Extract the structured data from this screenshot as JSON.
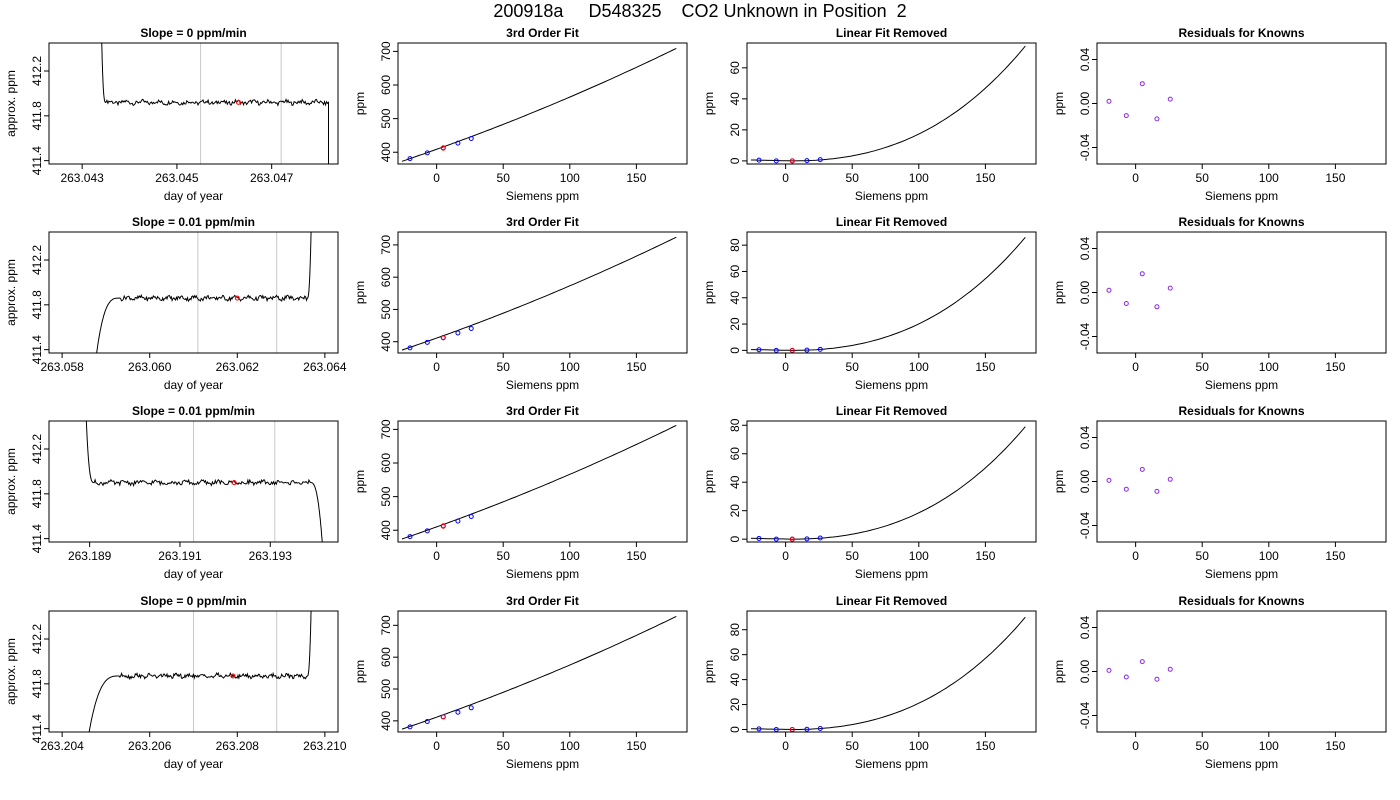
{
  "main_title": "200918a     D548325    CO2 Unknown in Position  2",
  "chart_data": [
    {
      "type": "line",
      "panel": "time-series",
      "row": 0,
      "title": "Slope =  0  ppm/min",
      "xlabel": "day of year",
      "ylabel": "approx. ppm",
      "xlim": [
        263.0423,
        263.0484
      ],
      "ylim": [
        411.37,
        412.45
      ],
      "x_ticks": [
        "263.043",
        "263.045",
        "263.047"
      ],
      "x_tick_values": [
        263.043,
        263.045,
        263.047
      ],
      "y_ticks": [
        "411.4",
        "411.8",
        "412.2"
      ],
      "y_tick_values": [
        411.4,
        411.8,
        412.2
      ],
      "vlines": [
        263.0455,
        263.0472
      ],
      "marker": {
        "x": 263.0463,
        "y": 411.92
      },
      "plateau": 411.92,
      "lead": "high",
      "tail": "low",
      "curve_range": [
        263.0435,
        263.0482
      ],
      "curve_ends": [
        263.0434,
        263.0482
      ]
    },
    {
      "type": "line",
      "panel": "calibration",
      "row": 0,
      "title": "3rd Order Fit",
      "xlabel": "Siemens ppm",
      "ylabel": "ppm",
      "xlim": [
        -29,
        188
      ],
      "ylim": [
        365,
        725
      ],
      "x_ticks": [
        "0",
        "50",
        "100",
        "150"
      ],
      "x_tick_values": [
        0,
        50,
        100,
        150
      ],
      "y_ticks": [
        "400",
        "500",
        "600",
        "700"
      ],
      "y_tick_values": [
        400,
        500,
        600,
        700
      ],
      "curve": {
        "x0": -26,
        "x1": 180,
        "y0": 373,
        "y1": 709
      },
      "knowns": [
        {
          "x": -20,
          "y": 381
        },
        {
          "x": -7,
          "y": 398
        },
        {
          "x": 5,
          "y": 413
        },
        {
          "x": 16,
          "y": 427
        },
        {
          "x": 26,
          "y": 441
        }
      ],
      "unknown": {
        "x": 5,
        "y": 412
      }
    },
    {
      "type": "line",
      "panel": "linear-removed",
      "row": 0,
      "title": "Linear Fit Removed",
      "xlabel": "Siemens ppm",
      "ylabel": "ppm",
      "xlim": [
        -29,
        188
      ],
      "ylim": [
        -2,
        76
      ],
      "x_ticks": [
        "0",
        "50",
        "100",
        "150"
      ],
      "x_tick_values": [
        0,
        50,
        100,
        150
      ],
      "y_ticks": [
        "0",
        "20",
        "40",
        "60"
      ],
      "y_tick_values": [
        0,
        20,
        40,
        60
      ],
      "curve": {
        "x0": -26,
        "x1": 180,
        "ymax": 74
      },
      "knowns": [
        {
          "x": -20,
          "y": 0.5
        },
        {
          "x": -7,
          "y": 0
        },
        {
          "x": 5,
          "y": 0
        },
        {
          "x": 16,
          "y": 0.2
        },
        {
          "x": 26,
          "y": 0.8
        }
      ],
      "unknown": {
        "x": 5,
        "y": 0
      }
    },
    {
      "type": "scatter",
      "panel": "residuals",
      "row": 0,
      "title": "Residuals for Knowns",
      "xlabel": "Siemens ppm",
      "ylabel": "ppm",
      "xlim": [
        -29,
        188
      ],
      "ylim": [
        -0.055,
        0.055
      ],
      "x_ticks": [
        "0",
        "50",
        "100",
        "150"
      ],
      "x_tick_values": [
        0,
        50,
        100,
        150
      ],
      "y_ticks": [
        "-0.04",
        "0.00",
        "0.04"
      ],
      "y_tick_values": [
        -0.04,
        0,
        0.04
      ],
      "points": [
        {
          "x": -20,
          "y": 0.002
        },
        {
          "x": -7,
          "y": -0.011
        },
        {
          "x": 5,
          "y": 0.018
        },
        {
          "x": 16,
          "y": -0.014
        },
        {
          "x": 26,
          "y": 0.004
        }
      ]
    },
    {
      "type": "line",
      "panel": "time-series",
      "row": 1,
      "title": "Slope =  0.01  ppm/min",
      "xlabel": "day of year",
      "ylabel": "approx. ppm",
      "xlim": [
        263.0577,
        263.0643
      ],
      "ylim": [
        411.37,
        412.45
      ],
      "x_ticks": [
        "263.058",
        "263.060",
        "263.062",
        "263.064"
      ],
      "x_tick_values": [
        263.058,
        263.06,
        263.062,
        263.064
      ],
      "y_ticks": [
        "411.4",
        "411.8",
        "412.2"
      ],
      "y_tick_values": [
        411.4,
        411.8,
        412.2
      ],
      "vlines": [
        263.0611,
        263.0629
      ],
      "marker": {
        "x": 263.062,
        "y": 411.86
      },
      "plateau": 411.86,
      "lead": "low",
      "tail": "high",
      "curve_range": [
        263.0593,
        263.0636
      ],
      "curve_ends": [
        263.0587,
        263.0637
      ]
    },
    {
      "type": "line",
      "panel": "calibration",
      "row": 1,
      "title": "3rd Order Fit",
      "xlabel": "Siemens ppm",
      "ylabel": "ppm",
      "xlim": [
        -29,
        188
      ],
      "ylim": [
        365,
        740
      ],
      "x_ticks": [
        "0",
        "50",
        "100",
        "150"
      ],
      "x_tick_values": [
        0,
        50,
        100,
        150
      ],
      "y_ticks": [
        "400",
        "500",
        "600",
        "700"
      ],
      "y_tick_values": [
        400,
        500,
        600,
        700
      ],
      "curve": {
        "x0": -26,
        "x1": 180,
        "y0": 374,
        "y1": 724
      },
      "knowns": [
        {
          "x": -20,
          "y": 381
        },
        {
          "x": -7,
          "y": 398
        },
        {
          "x": 5,
          "y": 413
        },
        {
          "x": 16,
          "y": 427
        },
        {
          "x": 26,
          "y": 441
        }
      ],
      "unknown": {
        "x": 5,
        "y": 412
      }
    },
    {
      "type": "line",
      "panel": "linear-removed",
      "row": 1,
      "title": "Linear Fit Removed",
      "xlabel": "Siemens ppm",
      "ylabel": "ppm",
      "xlim": [
        -29,
        188
      ],
      "ylim": [
        -2,
        90
      ],
      "x_ticks": [
        "0",
        "50",
        "100",
        "150"
      ],
      "x_tick_values": [
        0,
        50,
        100,
        150
      ],
      "y_ticks": [
        "0",
        "20",
        "40",
        "60",
        "80"
      ],
      "y_tick_values": [
        0,
        20,
        40,
        60,
        80
      ],
      "curve": {
        "x0": -26,
        "x1": 180,
        "ymax": 86
      },
      "knowns": [
        {
          "x": -20,
          "y": 0.5
        },
        {
          "x": -7,
          "y": 0
        },
        {
          "x": 5,
          "y": 0
        },
        {
          "x": 16,
          "y": 0.2
        },
        {
          "x": 26,
          "y": 0.8
        }
      ],
      "unknown": {
        "x": 5,
        "y": 0
      }
    },
    {
      "type": "scatter",
      "panel": "residuals",
      "row": 1,
      "title": "Residuals for Knowns",
      "xlabel": "Siemens ppm",
      "ylabel": "ppm",
      "xlim": [
        -29,
        188
      ],
      "ylim": [
        -0.055,
        0.055
      ],
      "x_ticks": [
        "0",
        "50",
        "100",
        "150"
      ],
      "x_tick_values": [
        0,
        50,
        100,
        150
      ],
      "y_ticks": [
        "-0.04",
        "0.00",
        "0.04"
      ],
      "y_tick_values": [
        -0.04,
        0,
        0.04
      ],
      "points": [
        {
          "x": -20,
          "y": 0.002
        },
        {
          "x": -7,
          "y": -0.01
        },
        {
          "x": 5,
          "y": 0.017
        },
        {
          "x": 16,
          "y": -0.013
        },
        {
          "x": 26,
          "y": 0.004
        }
      ]
    },
    {
      "type": "line",
      "panel": "time-series",
      "row": 2,
      "title": "Slope =  0.01  ppm/min",
      "xlabel": "day of year",
      "ylabel": "approx. ppm",
      "xlim": [
        263.1881,
        263.1945
      ],
      "ylim": [
        411.37,
        412.45
      ],
      "x_ticks": [
        "263.189",
        "263.191",
        "263.193"
      ],
      "x_tick_values": [
        263.189,
        263.191,
        263.193
      ],
      "y_ticks": [
        "411.4",
        "411.8",
        "412.2"
      ],
      "y_tick_values": [
        411.4,
        411.8,
        412.2
      ],
      "vlines": [
        263.1913,
        263.1931
      ],
      "marker": {
        "x": 263.1922,
        "y": 411.9
      },
      "plateau": 411.9,
      "lead": "high",
      "tail": "low",
      "curve_range": [
        263.1891,
        263.1939
      ],
      "curve_ends": [
        263.1889,
        263.1942
      ]
    },
    {
      "type": "line",
      "panel": "calibration",
      "row": 2,
      "title": "3rd Order Fit",
      "xlabel": "Siemens ppm",
      "ylabel": "ppm",
      "xlim": [
        -29,
        188
      ],
      "ylim": [
        365,
        725
      ],
      "x_ticks": [
        "0",
        "50",
        "100",
        "150"
      ],
      "x_tick_values": [
        0,
        50,
        100,
        150
      ],
      "y_ticks": [
        "400",
        "500",
        "600",
        "700"
      ],
      "y_tick_values": [
        400,
        500,
        600,
        700
      ],
      "curve": {
        "x0": -26,
        "x1": 180,
        "y0": 374,
        "y1": 712
      },
      "knowns": [
        {
          "x": -20,
          "y": 381
        },
        {
          "x": -7,
          "y": 398
        },
        {
          "x": 5,
          "y": 413
        },
        {
          "x": 16,
          "y": 427
        },
        {
          "x": 26,
          "y": 441
        }
      ],
      "unknown": {
        "x": 5,
        "y": 412
      }
    },
    {
      "type": "line",
      "panel": "linear-removed",
      "row": 2,
      "title": "Linear Fit Removed",
      "xlabel": "Siemens ppm",
      "ylabel": "ppm",
      "xlim": [
        -29,
        188
      ],
      "ylim": [
        -2,
        83
      ],
      "x_ticks": [
        "0",
        "50",
        "100",
        "150"
      ],
      "x_tick_values": [
        0,
        50,
        100,
        150
      ],
      "y_ticks": [
        "0",
        "20",
        "40",
        "60",
        "80"
      ],
      "y_tick_values": [
        0,
        20,
        40,
        60,
        80
      ],
      "curve": {
        "x0": -26,
        "x1": 180,
        "ymax": 79
      },
      "knowns": [
        {
          "x": -20,
          "y": 0.5
        },
        {
          "x": -7,
          "y": 0
        },
        {
          "x": 5,
          "y": 0
        },
        {
          "x": 16,
          "y": 0.2
        },
        {
          "x": 26,
          "y": 0.8
        }
      ],
      "unknown": {
        "x": 5,
        "y": 0
      }
    },
    {
      "type": "scatter",
      "panel": "residuals",
      "row": 2,
      "title": "Residuals for Knowns",
      "xlabel": "Siemens ppm",
      "ylabel": "ppm",
      "xlim": [
        -29,
        188
      ],
      "ylim": [
        -0.055,
        0.055
      ],
      "x_ticks": [
        "0",
        "50",
        "100",
        "150"
      ],
      "x_tick_values": [
        0,
        50,
        100,
        150
      ],
      "y_ticks": [
        "-0.04",
        "0.00",
        "0.04"
      ],
      "y_tick_values": [
        -0.04,
        0,
        0.04
      ],
      "points": [
        {
          "x": -20,
          "y": 0.001
        },
        {
          "x": -7,
          "y": -0.007
        },
        {
          "x": 5,
          "y": 0.011
        },
        {
          "x": 16,
          "y": -0.009
        },
        {
          "x": 26,
          "y": 0.002
        }
      ]
    },
    {
      "type": "line",
      "panel": "time-series",
      "row": 3,
      "title": "Slope =  0  ppm/min",
      "xlabel": "day of year",
      "ylabel": "approx. ppm",
      "xlim": [
        263.2037,
        263.2103
      ],
      "ylim": [
        411.37,
        412.45
      ],
      "x_ticks": [
        "263.204",
        "263.206",
        "263.208",
        "263.210"
      ],
      "x_tick_values": [
        263.204,
        263.206,
        263.208,
        263.21
      ],
      "y_ticks": [
        "411.4",
        "411.8",
        "412.2"
      ],
      "y_tick_values": [
        411.4,
        411.8,
        412.2
      ],
      "vlines": [
        263.207,
        263.2089
      ],
      "marker": {
        "x": 263.2079,
        "y": 411.87
      },
      "plateau": 411.87,
      "lead": "low",
      "tail": "high",
      "curve_range": [
        263.2053,
        263.2096
      ],
      "curve_ends": [
        263.2045,
        263.2097
      ]
    },
    {
      "type": "line",
      "panel": "calibration",
      "row": 3,
      "title": "3rd Order Fit",
      "xlabel": "Siemens ppm",
      "ylabel": "ppm",
      "xlim": [
        -29,
        188
      ],
      "ylim": [
        365,
        745
      ],
      "x_ticks": [
        "0",
        "50",
        "100",
        "150"
      ],
      "x_tick_values": [
        0,
        50,
        100,
        150
      ],
      "y_ticks": [
        "400",
        "500",
        "600",
        "700"
      ],
      "y_tick_values": [
        400,
        500,
        600,
        700
      ],
      "curve": {
        "x0": -26,
        "x1": 180,
        "y0": 374,
        "y1": 728
      },
      "knowns": [
        {
          "x": -20,
          "y": 381
        },
        {
          "x": -7,
          "y": 398
        },
        {
          "x": 5,
          "y": 413
        },
        {
          "x": 16,
          "y": 427
        },
        {
          "x": 26,
          "y": 441
        }
      ],
      "unknown": {
        "x": 5,
        "y": 412
      }
    },
    {
      "type": "line",
      "panel": "linear-removed",
      "row": 3,
      "title": "Linear Fit Removed",
      "xlabel": "Siemens ppm",
      "ylabel": "ppm",
      "xlim": [
        -29,
        188
      ],
      "ylim": [
        -2,
        95
      ],
      "x_ticks": [
        "0",
        "50",
        "100",
        "150"
      ],
      "x_tick_values": [
        0,
        50,
        100,
        150
      ],
      "y_ticks": [
        "0",
        "20",
        "40",
        "60",
        "80"
      ],
      "y_tick_values": [
        0,
        20,
        40,
        60,
        80
      ],
      "curve": {
        "x0": -26,
        "x1": 180,
        "ymax": 90
      },
      "knowns": [
        {
          "x": -20,
          "y": 0.5
        },
        {
          "x": -7,
          "y": 0
        },
        {
          "x": 5,
          "y": 0
        },
        {
          "x": 16,
          "y": 0.2
        },
        {
          "x": 26,
          "y": 0.8
        }
      ],
      "unknown": {
        "x": 5,
        "y": 0
      }
    },
    {
      "type": "scatter",
      "panel": "residuals",
      "row": 3,
      "title": "Residuals for Knowns",
      "xlabel": "Siemens ppm",
      "ylabel": "ppm",
      "xlim": [
        -29,
        188
      ],
      "ylim": [
        -0.055,
        0.055
      ],
      "x_ticks": [
        "0",
        "50",
        "100",
        "150"
      ],
      "x_tick_values": [
        0,
        50,
        100,
        150
      ],
      "y_ticks": [
        "-0.04",
        "0.00",
        "0.04"
      ],
      "y_tick_values": [
        -0.04,
        0,
        0.04
      ],
      "points": [
        {
          "x": -20,
          "y": 0.001
        },
        {
          "x": -7,
          "y": -0.005
        },
        {
          "x": 5,
          "y": 0.009
        },
        {
          "x": 16,
          "y": -0.007
        },
        {
          "x": 26,
          "y": 0.002
        }
      ]
    }
  ]
}
